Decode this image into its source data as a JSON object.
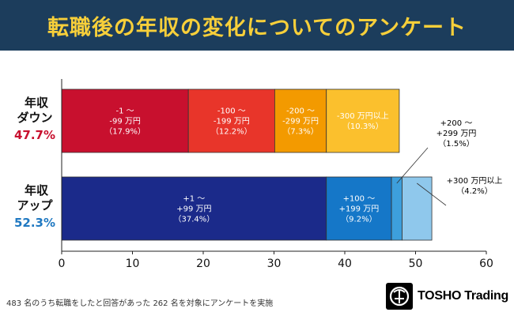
{
  "header": {
    "title": "転職後の年収の変化についてのアンケート"
  },
  "chart_data": {
    "type": "bar",
    "orientation": "horizontal",
    "stacked": true,
    "title": "転職後の年収の変化についてのアンケート",
    "xlim": [
      0,
      60
    ],
    "xticks": [
      0,
      10,
      20,
      30,
      40,
      50,
      60
    ],
    "grid": false,
    "categories": [
      {
        "label_line1": "年収",
        "label_line2": "ダウン",
        "total": "47.7%",
        "total_color": "#c8102e"
      },
      {
        "label_line1": "年収",
        "label_line2": "アップ",
        "total": "52.3%",
        "total_color": "#1f78c1"
      }
    ],
    "series": [
      {
        "category": "年収ダウン",
        "segments": [
          {
            "range": "-1 ～",
            "amount": "-99 万円",
            "pct": "（17.9%）",
            "value": 17.9,
            "color": "#c8102e",
            "text_color": "#ffffff"
          },
          {
            "range": "-100 ～",
            "amount": "-199 万円",
            "pct": "（12.2%）",
            "value": 12.2,
            "color": "#e8352a",
            "text_color": "#ffffff"
          },
          {
            "range": "-200 ～",
            "amount": "-299 万円",
            "pct": "（7.3%）",
            "value": 7.3,
            "color": "#f39a00",
            "text_color": "#ffffff"
          },
          {
            "range": "-300 万円以上",
            "amount": "",
            "pct": "（10.3%）",
            "value": 10.3,
            "color": "#fbc02d",
            "text_color": "#ffffff"
          }
        ]
      },
      {
        "category": "年収アップ",
        "segments": [
          {
            "range": "+1 ～",
            "amount": "+99 万円",
            "pct": "（37.4%）",
            "value": 37.4,
            "color": "#1b2a8a",
            "text_color": "#ffffff"
          },
          {
            "range": "+100 ～",
            "amount": "+199 万円",
            "pct": "（9.2%）",
            "value": 9.2,
            "color": "#1577c8",
            "text_color": "#ffffff"
          },
          {
            "range": "+200 ～",
            "amount": "+299 万円",
            "pct": "（1.5%）",
            "value": 1.5,
            "color": "#3d9fdc",
            "text_color": "#000000",
            "callout": true
          },
          {
            "range": "+300 万円以上",
            "amount": "",
            "pct": "（4.2%）",
            "value": 4.2,
            "color": "#8fc8ec",
            "text_color": "#000000",
            "callout": true
          }
        ]
      }
    ]
  },
  "footnote": "483 名のうち転職をしたと回答があった 262 名を対象にアンケートを実施",
  "logo": {
    "text": "TOSHO Trading",
    "icon": "tosho-logo-icon"
  }
}
